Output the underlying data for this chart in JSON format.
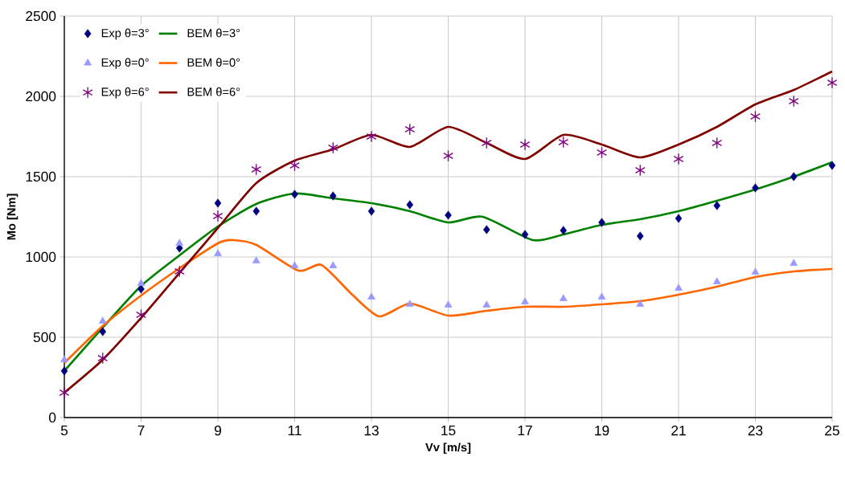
{
  "chart_data": {
    "type": "scatter",
    "xlabel": "Vv [m/s]",
    "ylabel": "Mo [Nm]",
    "x": [
      5,
      6,
      7,
      8,
      9,
      10,
      11,
      12,
      13,
      14,
      15,
      16,
      17,
      18,
      19,
      20,
      21,
      22,
      23,
      24,
      25
    ],
    "xlim": [
      5,
      25
    ],
    "xticks": [
      5,
      7,
      9,
      11,
      13,
      15,
      17,
      19,
      21,
      23,
      25
    ],
    "ylim": [
      0,
      2500
    ],
    "yticks": [
      0,
      500,
      1000,
      1500,
      2000,
      2500
    ],
    "grid": true,
    "legend": "top left",
    "series": [
      {
        "name": "Exp θ=3°",
        "marker": "diamond",
        "color": "#000080",
        "values": [
          290,
          535,
          800,
          1055,
          1335,
          1285,
          1390,
          1380,
          1285,
          1325,
          1260,
          1170,
          1140,
          1165,
          1215,
          1130,
          1240,
          1320,
          1430,
          1500,
          1570
        ]
      },
      {
        "name": "BEM θ=3°",
        "type": "line",
        "marker": "none",
        "color": "#008000",
        "x": [
          5,
          6,
          7,
          8,
          9,
          10,
          11,
          12,
          13,
          14,
          15,
          15.9,
          17.2,
          18,
          19,
          20,
          21,
          22,
          23,
          24,
          25
        ],
        "values": [
          290,
          560,
          820,
          1010,
          1190,
          1330,
          1395,
          1365,
          1335,
          1285,
          1215,
          1250,
          1105,
          1140,
          1200,
          1235,
          1285,
          1350,
          1420,
          1500,
          1590
        ]
      },
      {
        "name": "Exp θ=0°",
        "marker": "triangle",
        "color": "#9999ff",
        "values": [
          360,
          600,
          835,
          1085,
          1020,
          975,
          945,
          945,
          750,
          705,
          700,
          700,
          720,
          740,
          750,
          705,
          805,
          845,
          905,
          960,
          null
        ]
      },
      {
        "name": "BEM θ=0°",
        "type": "line",
        "marker": "none",
        "color": "#ff6600",
        "x": [
          5,
          6,
          7,
          8,
          9,
          9.4,
          10,
          11.1,
          11.7,
          12.5,
          13.2,
          14,
          15,
          16,
          17,
          18,
          19,
          20,
          21,
          22,
          23,
          24,
          25
        ],
        "values": [
          340,
          570,
          760,
          930,
          1085,
          1105,
          1075,
          915,
          950,
          765,
          630,
          710,
          635,
          665,
          690,
          690,
          705,
          725,
          765,
          815,
          875,
          910,
          925
        ]
      },
      {
        "name": "Exp θ=6°",
        "marker": "cross",
        "color": "#800080",
        "values": [
          155,
          370,
          640,
          910,
          1255,
          1545,
          1570,
          1680,
          1750,
          1795,
          1630,
          1710,
          1700,
          1715,
          1650,
          1540,
          1610,
          1710,
          1875,
          1970,
          2085
        ]
      },
      {
        "name": "BEM θ=6°",
        "type": "line",
        "marker": "none",
        "color": "#800000",
        "x": [
          5,
          6,
          7,
          8,
          9,
          10,
          11,
          12,
          13,
          14,
          15,
          16,
          17,
          18,
          19,
          20,
          21,
          22,
          23,
          24,
          25
        ],
        "values": [
          155,
          360,
          620,
          900,
          1180,
          1460,
          1600,
          1670,
          1760,
          1685,
          1810,
          1710,
          1610,
          1760,
          1700,
          1620,
          1700,
          1810,
          1950,
          2040,
          2155
        ]
      }
    ]
  }
}
